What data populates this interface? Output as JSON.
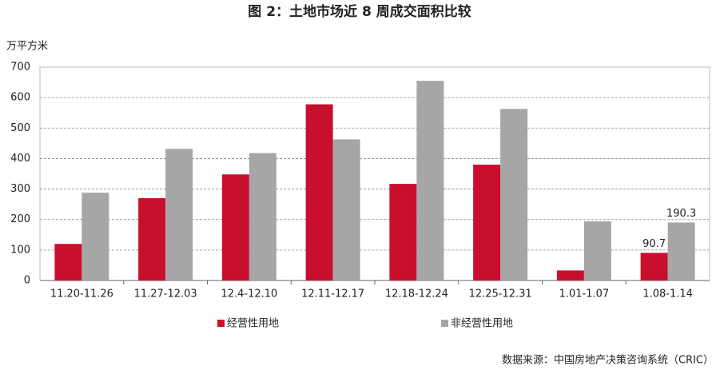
{
  "chart_data": {
    "type": "bar",
    "title": "图 2：土地市场近 8 周成交面积比较",
    "y_label": "万平方米",
    "categories": [
      "11.20-11.26",
      "11.27-12.03",
      "12.4-12.10",
      "12.11-12.17",
      "12.18-12.24",
      "12.25-12.31",
      "1.01-1.07",
      "1.08-1.14"
    ],
    "series": [
      {
        "name": "经营性用地",
        "color": "#c8102e",
        "values": [
          120,
          270,
          348,
          578,
          317,
          380,
          33,
          90.7
        ]
      },
      {
        "name": "非经营性用地",
        "color": "#a6a6a6",
        "values": [
          288,
          432,
          418,
          463,
          655,
          563,
          194,
          190.3
        ]
      }
    ],
    "ylim": [
      0,
      700
    ],
    "yticks": [
      0,
      100,
      200,
      300,
      400,
      500,
      600,
      700
    ],
    "grid": true,
    "source": "数据来源：中国房地产决策咨询系统（CRIC）"
  }
}
